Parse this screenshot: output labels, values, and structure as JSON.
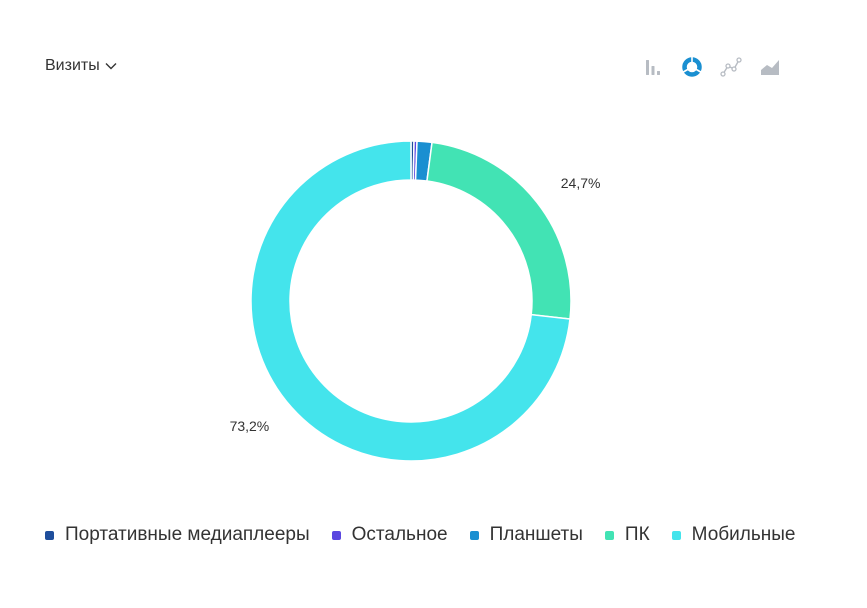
{
  "header": {
    "metric_label": "Визиты",
    "chart_types": [
      {
        "name": "bar-chart-icon",
        "active": false
      },
      {
        "name": "donut-chart-icon",
        "active": true
      },
      {
        "name": "line-chart-icon",
        "active": false
      },
      {
        "name": "area-chart-icon",
        "active": false
      }
    ]
  },
  "colors": {
    "icon_inactive": "#b7bcc3",
    "icon_active": "#1a8fd1"
  },
  "chart_data": {
    "type": "pie",
    "style": "donut",
    "categories": [
      "Портативные медиаплееры",
      "Остальное",
      "Планшеты",
      "ПК",
      "Мобильные"
    ],
    "values": [
      0.3,
      0.3,
      1.5,
      24.7,
      73.2
    ],
    "colors": [
      "#1f4e9c",
      "#5b47e0",
      "#1a8fd1",
      "#42e3b4",
      "#44e4ec"
    ],
    "data_labels": [
      "",
      "",
      "",
      "24,7%",
      "73,2%"
    ],
    "legend": "bottom"
  }
}
